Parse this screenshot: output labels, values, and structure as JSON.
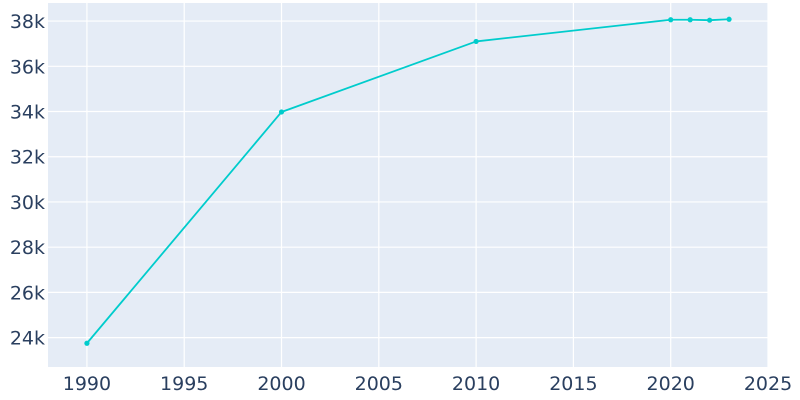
{
  "chart_data": {
    "type": "line",
    "title": "",
    "xlabel": "",
    "ylabel": "",
    "x": [
      1990,
      2000,
      2010,
      2020,
      2021,
      2022,
      2023
    ],
    "series": [
      {
        "values": [
          23750,
          33980,
          37100,
          38060,
          38060,
          38040,
          38080
        ]
      }
    ],
    "xlim": [
      1988,
      2025
    ],
    "ylim": [
      22700,
      38800
    ],
    "x_ticks": [
      1990,
      1995,
      2000,
      2005,
      2010,
      2015,
      2020,
      2025
    ],
    "x_tick_labels": [
      "1990",
      "1995",
      "2000",
      "2005",
      "2010",
      "2015",
      "2020",
      "2025"
    ],
    "y_ticks": [
      24000,
      26000,
      28000,
      30000,
      32000,
      34000,
      36000,
      38000
    ],
    "y_tick_labels": [
      "24k",
      "26k",
      "28k",
      "30k",
      "32k",
      "34k",
      "36k",
      "38k"
    ],
    "grid": true,
    "colors": {
      "plot_background": "#e5ecf6",
      "grid": "#ffffff",
      "line": "#00cccc",
      "tick_text": "#2a3f5f"
    }
  }
}
